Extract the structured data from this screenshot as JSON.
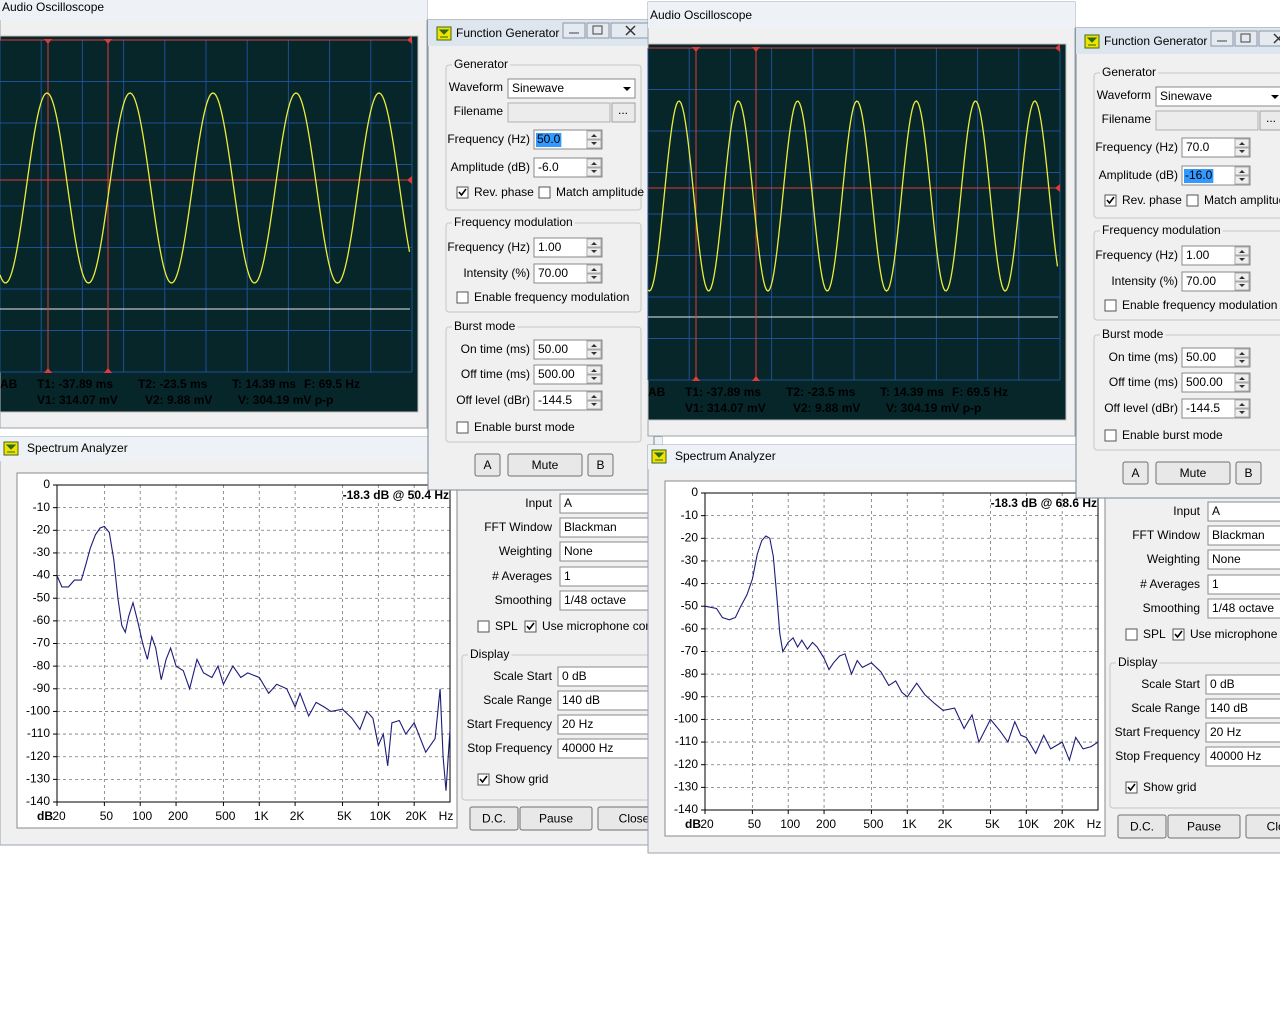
{
  "panels": [
    {
      "oscilloscope": {
        "title": "Audio Oscilloscope",
        "channel": "AB",
        "readouts": [
          [
            "T1: -37.89 ms",
            "T2: -23.5 ms",
            "T: 14.39 ms",
            "F: 69.5 Hz"
          ],
          [
            "V1: 314.07 mV",
            "V2: 9.88 mV",
            "V: 304.19 mV p-p"
          ]
        ]
      },
      "function_generator": {
        "title": "Function Generator",
        "generator": {
          "title": "Generator",
          "waveform": {
            "label": "Waveform",
            "value": "Sinewave"
          },
          "filename": {
            "label": "Filename",
            "browse": "..."
          },
          "frequency": {
            "label": "Frequency (Hz)",
            "value": "50.0",
            "selected": true
          },
          "amplitude": {
            "label": "Amplitude (dB)",
            "value": "-6.0"
          },
          "rev_phase": {
            "label": "Rev. phase",
            "checked": true
          },
          "match_amplitude": {
            "label": "Match amplitude",
            "checked": false
          }
        },
        "frequency_modulation": {
          "title": "Frequency modulation",
          "frequency": {
            "label": "Frequency (Hz)",
            "value": "1.00"
          },
          "intensity": {
            "label": "Intensity (%)",
            "value": "70.00"
          },
          "enable": {
            "label": "Enable frequency modulation",
            "checked": false
          }
        },
        "burst_mode": {
          "title": "Burst mode",
          "on_time": {
            "label": "On time (ms)",
            "value": "50.00"
          },
          "off_time": {
            "label": "Off time (ms)",
            "value": "500.00"
          },
          "off_level": {
            "label": "Off level (dBr)",
            "value": "-144.5"
          },
          "enable": {
            "label": "Enable burst mode",
            "checked": false
          }
        },
        "buttons": [
          "A",
          "Mute",
          "B"
        ]
      },
      "spectrum": {
        "title": "Spectrum Analyzer",
        "type": "line",
        "peak_label": "-18.3 dB @ 50.4 Hz",
        "y_label": "dB",
        "x_label": "Hz",
        "log_x": true,
        "grid": true,
        "color": "#1c1c78",
        "xlim": [
          20,
          40000
        ],
        "ylim": [
          -140,
          0
        ],
        "xticks": [
          20,
          50,
          100,
          200,
          500,
          {
            "value": 1000,
            "label": "1K"
          },
          {
            "value": 2000,
            "label": "2K"
          },
          {
            "value": 5000,
            "label": "5K"
          },
          {
            "value": 10000,
            "label": "10K"
          },
          {
            "value": 20000,
            "label": "20K"
          }
        ],
        "yticks": [
          0,
          -10,
          -20,
          -30,
          -40,
          -50,
          -60,
          -70,
          -80,
          -90,
          -100,
          -110,
          -120,
          -130,
          -140
        ],
        "x": [
          20,
          22,
          25,
          28,
          32,
          35,
          38,
          42,
          46,
          50,
          55,
          60,
          65,
          70,
          75,
          80,
          87,
          95,
          105,
          115,
          125,
          135,
          150,
          165,
          180,
          200,
          230,
          260,
          300,
          340,
          400,
          450,
          500,
          600,
          700,
          800,
          1000,
          1200,
          1400,
          1700,
          2000,
          2200,
          2600,
          3000,
          3500,
          4000,
          5000,
          6000,
          7000,
          8000,
          9000,
          10000,
          11000,
          12000,
          13000,
          15000,
          17000,
          20000,
          25000,
          30000,
          33000,
          35000,
          37000,
          40000
        ],
        "values": [
          -40,
          -45,
          -45,
          -42,
          -42,
          -35,
          -28,
          -22,
          -19,
          -18.3,
          -21,
          -33,
          -50,
          -62,
          -65,
          -58,
          -52,
          -60,
          -70,
          -77,
          -67,
          -72,
          -86,
          -77,
          -72,
          -80,
          -82,
          -90,
          -77,
          -83,
          -85,
          -80,
          -88,
          -80,
          -85,
          -83,
          -85,
          -92,
          -88,
          -90,
          -98,
          -92,
          -102,
          -96,
          -98,
          -100,
          -99,
          -103,
          -108,
          -100,
          -103,
          -115,
          -110,
          -124,
          -105,
          -104,
          -110,
          -105,
          -118,
          -112,
          -90,
          -120,
          -135,
          -108
        ],
        "settings": [
          {
            "label": "Input",
            "value": "A"
          },
          {
            "label": "FFT Window",
            "value": "Blackman"
          },
          {
            "label": "Weighting",
            "value": "None"
          },
          {
            "label": "# Averages",
            "value": "1"
          },
          {
            "label": "Smoothing",
            "value": "1/48 octave"
          }
        ],
        "spl": {
          "label": "SPL",
          "checked": false
        },
        "mic": {
          "label": "Use microphone comp.",
          "checked": true
        },
        "display": {
          "title": "Display",
          "fields": [
            {
              "label": "Scale Start",
              "value": "0 dB"
            },
            {
              "label": "Scale Range",
              "value": "140 dB"
            },
            {
              "label": "Start Frequency",
              "value": "20 Hz"
            },
            {
              "label": "Stop Frequency",
              "value": "40000 Hz"
            }
          ]
        },
        "show_grid": {
          "label": "Show grid",
          "checked": true
        },
        "buttons": [
          "D.C.",
          "Pause",
          "Close"
        ]
      }
    },
    {
      "oscilloscope": {
        "title": "Audio Oscilloscope",
        "channel": "AB",
        "readouts": [
          [
            "T1: -37.89 ms",
            "T2: -23.5 ms",
            "T: 14.39 ms",
            "F: 69.5 Hz"
          ],
          [
            "V1: 314.07 mV",
            "V2: 9.88 mV",
            "V: 304.19 mV p-p"
          ]
        ]
      },
      "function_generator": {
        "title": "Function Generator",
        "generator": {
          "title": "Generator",
          "waveform": {
            "label": "Waveform",
            "value": "Sinewave"
          },
          "filename": {
            "label": "Filename",
            "browse": "..."
          },
          "frequency": {
            "label": "Frequency (Hz)",
            "value": "70.0"
          },
          "amplitude": {
            "label": "Amplitude (dB)",
            "value": "-16.0",
            "selected": true
          },
          "rev_phase": {
            "label": "Rev. phase",
            "checked": true
          },
          "match_amplitude": {
            "label": "Match amplitude",
            "checked": false
          }
        },
        "frequency_modulation": {
          "title": "Frequency modulation",
          "frequency": {
            "label": "Frequency (Hz)",
            "value": "1.00"
          },
          "intensity": {
            "label": "Intensity (%)",
            "value": "70.00"
          },
          "enable": {
            "label": "Enable frequency modulation",
            "checked": false
          }
        },
        "burst_mode": {
          "title": "Burst mode",
          "on_time": {
            "label": "On time (ms)",
            "value": "50.00"
          },
          "off_time": {
            "label": "Off time (ms)",
            "value": "500.00"
          },
          "off_level": {
            "label": "Off level (dBr)",
            "value": "-144.5"
          },
          "enable": {
            "label": "Enable burst mode",
            "checked": false
          }
        },
        "buttons": [
          "A",
          "Mute",
          "B"
        ]
      },
      "spectrum": {
        "title": "Spectrum Analyzer",
        "type": "line",
        "peak_label": "-18.3 dB @ 68.6 Hz",
        "y_label": "dB",
        "x_label": "Hz",
        "log_x": true,
        "grid": true,
        "color": "#1c1c78",
        "xlim": [
          20,
          40000
        ],
        "ylim": [
          -140,
          0
        ],
        "xticks": [
          20,
          50,
          100,
          200,
          500,
          {
            "value": 1000,
            "label": "1K"
          },
          {
            "value": 2000,
            "label": "2K"
          },
          {
            "value": 5000,
            "label": "5K"
          },
          {
            "value": 10000,
            "label": "10K"
          },
          {
            "value": 20000,
            "label": "20K"
          }
        ],
        "yticks": [
          0,
          -10,
          -20,
          -30,
          -40,
          -50,
          -60,
          -70,
          -80,
          -90,
          -100,
          -110,
          -120,
          -130,
          -140
        ],
        "x": [
          20,
          25,
          28,
          32,
          36,
          40,
          45,
          50,
          55,
          60,
          65,
          70,
          75,
          80,
          85,
          90,
          100,
          110,
          120,
          130,
          145,
          160,
          175,
          200,
          220,
          240,
          270,
          300,
          340,
          380,
          420,
          500,
          600,
          700,
          800,
          900,
          1000,
          1200,
          1400,
          1700,
          2000,
          2500,
          3000,
          3500,
          4000,
          5000,
          6000,
          7000,
          8000,
          9000,
          10000,
          12000,
          14000,
          16000,
          20000,
          23000,
          26000,
          30000,
          35000,
          40000
        ],
        "values": [
          -50,
          -51,
          -55,
          -56,
          -55,
          -50,
          -45,
          -38,
          -27,
          -21,
          -19,
          -20,
          -28,
          -45,
          -62,
          -70,
          -66,
          -64,
          -68,
          -65,
          -69,
          -66,
          -68,
          -73,
          -78,
          -75,
          -72,
          -71,
          -80,
          -74,
          -77,
          -75,
          -79,
          -85,
          -83,
          -88,
          -90,
          -84,
          -89,
          -93,
          -96,
          -95,
          -104,
          -98,
          -110,
          -100,
          -105,
          -110,
          -101,
          -107,
          -108,
          -115,
          -107,
          -113,
          -110,
          -118,
          -108,
          -113,
          -112,
          -110
        ],
        "settings": [
          {
            "label": "Input",
            "value": "A"
          },
          {
            "label": "FFT Window",
            "value": "Blackman"
          },
          {
            "label": "Weighting",
            "value": "None"
          },
          {
            "label": "# Averages",
            "value": "1"
          },
          {
            "label": "Smoothing",
            "value": "1/48 octave"
          }
        ],
        "spl": {
          "label": "SPL",
          "checked": false
        },
        "mic": {
          "label": "Use microphone comp.",
          "checked": true
        },
        "display": {
          "title": "Display",
          "fields": [
            {
              "label": "Scale Start",
              "value": "0 dB"
            },
            {
              "label": "Scale Range",
              "value": "140 dB"
            },
            {
              "label": "Start Frequency",
              "value": "20 Hz"
            },
            {
              "label": "Stop Frequency",
              "value": "40000 Hz"
            }
          ]
        },
        "show_grid": {
          "label": "Show grid",
          "checked": true
        },
        "buttons": [
          "D.C.",
          "Pause",
          "Close"
        ]
      }
    }
  ]
}
